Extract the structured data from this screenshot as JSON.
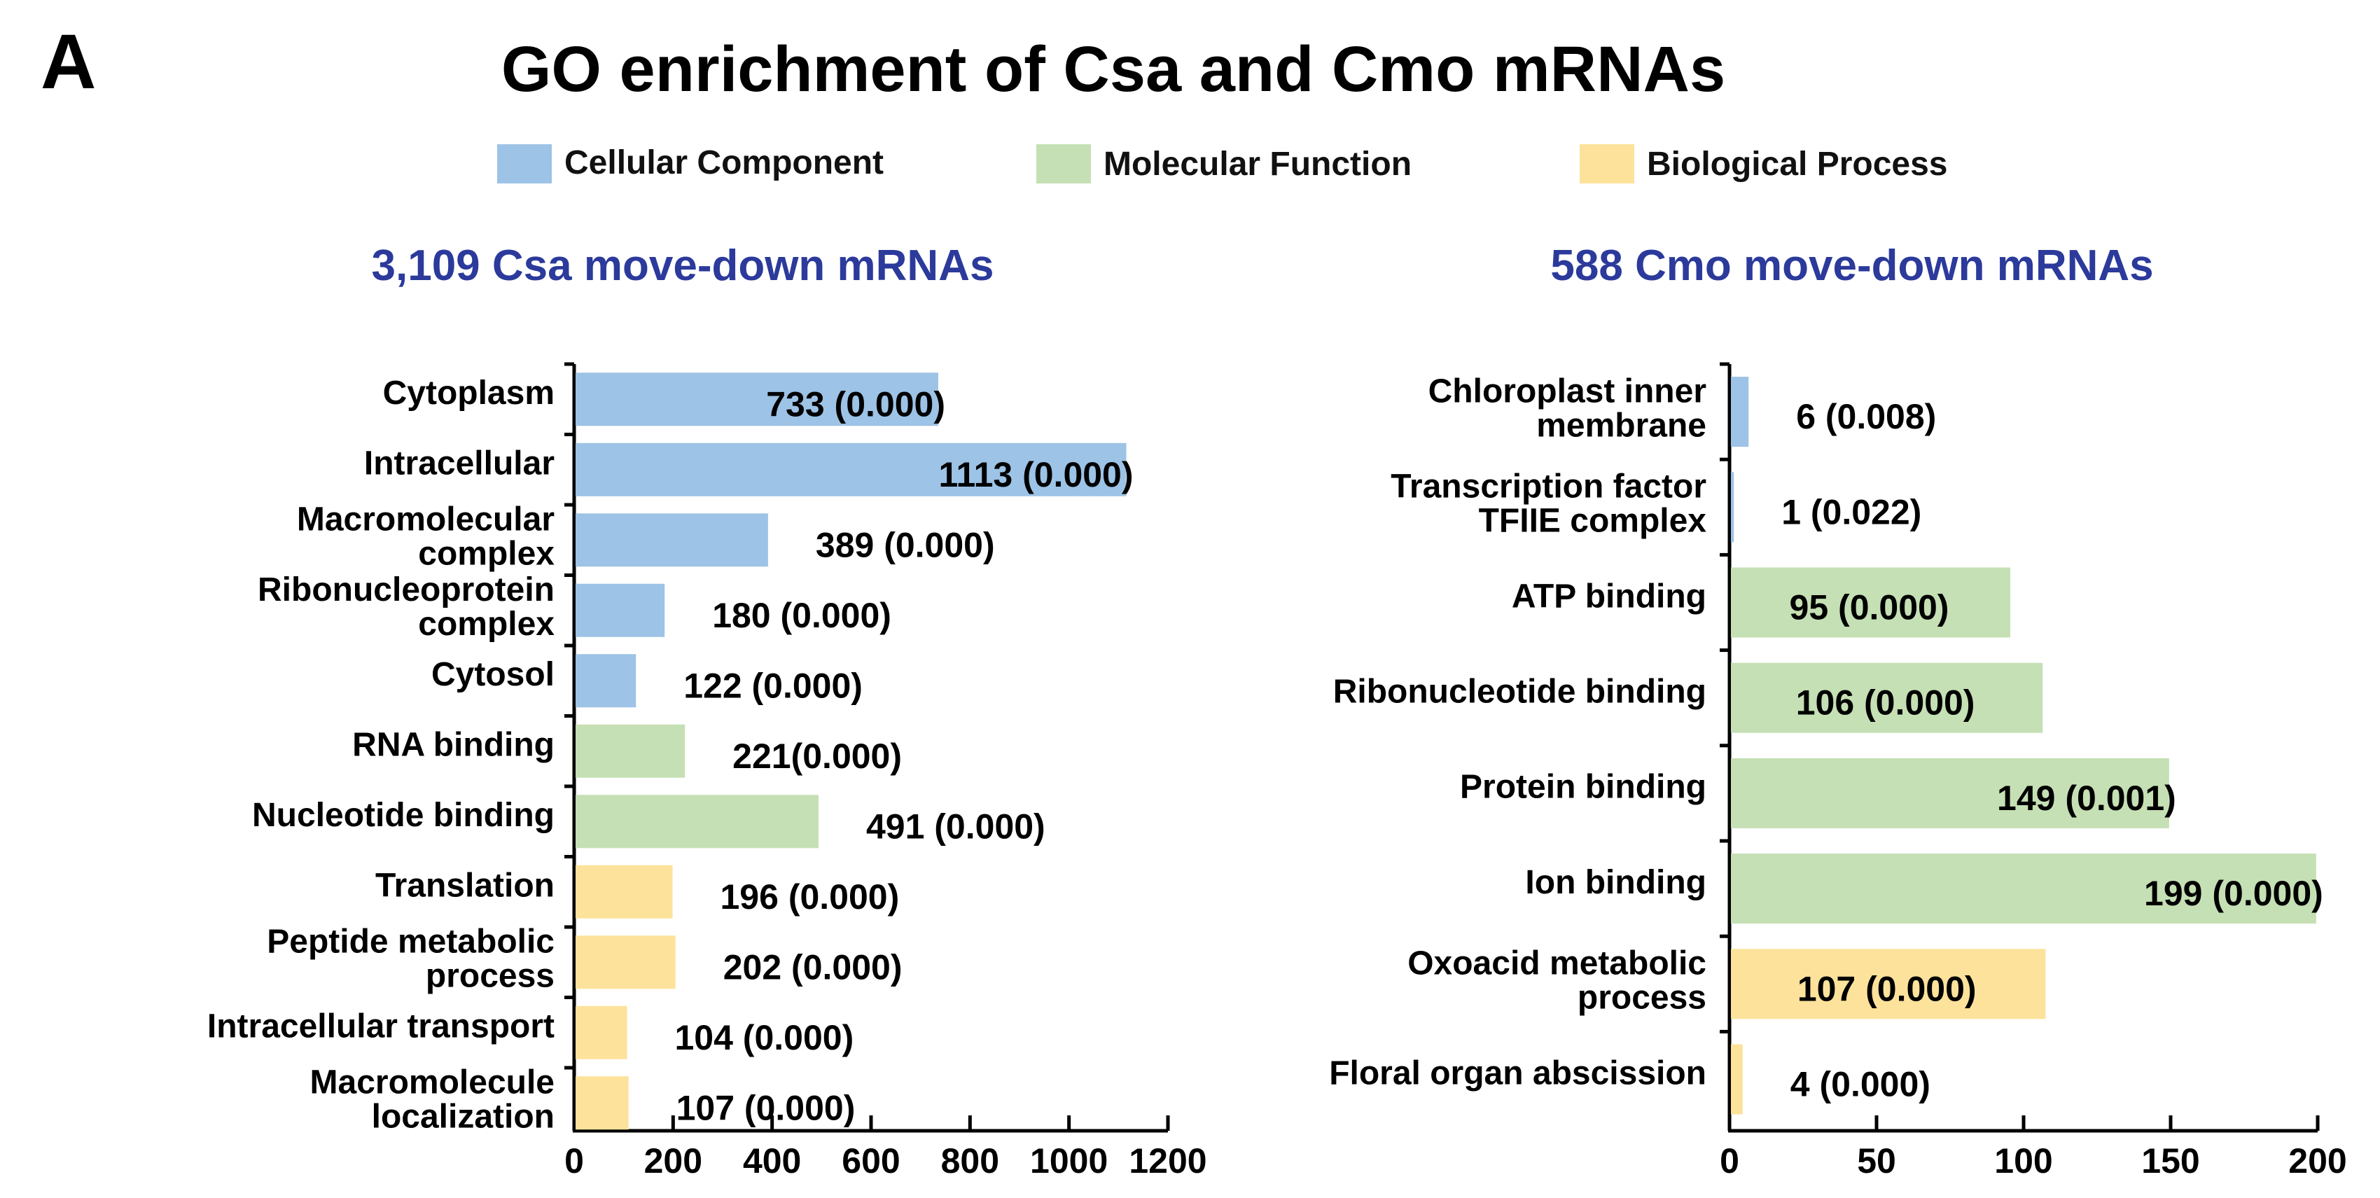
{
  "panel_label": "A",
  "title": "GO enrichment of  Csa and Cmo mRNAs",
  "legend": [
    {
      "label": "Cellular Component",
      "color": "#9dc3e6"
    },
    {
      "label": "Molecular Function",
      "color": "#c5e0b4"
    },
    {
      "label": "Biological Process",
      "color": "#fde29b"
    }
  ],
  "chart_data": [
    {
      "type": "bar",
      "orientation": "horizontal",
      "title": "3,109 Csa move-down mRNAs",
      "title_color": "#2b3a9b",
      "xlim": [
        0,
        1200
      ],
      "xticks": [
        0,
        200,
        400,
        600,
        800,
        1000,
        1200
      ],
      "categories": [
        [
          "Cytoplasm"
        ],
        [
          "Intracellular"
        ],
        [
          "Macromolecular",
          "complex"
        ],
        [
          "Ribonucleoprotein",
          "complex"
        ],
        [
          "Cytosol"
        ],
        [
          "RNA binding"
        ],
        [
          "Nucleotide binding"
        ],
        [
          "Translation"
        ],
        [
          "Peptide metabolic",
          "process"
        ],
        [
          "Intracellular transport"
        ],
        [
          "Macromolecule",
          "localization"
        ]
      ],
      "values": [
        733,
        1113,
        389,
        180,
        122,
        221,
        491,
        196,
        202,
        104,
        107
      ],
      "data_labels": [
        "733 (0.000)",
        "1113 (0.000)",
        "389 (0.000)",
        "180 (0.000)",
        "122 (0.000)",
        "221(0.000)",
        "491 (0.000)",
        "196 (0.000)",
        "202 (0.000)",
        "104 (0.000)",
        "107 (0.000)"
      ],
      "groups": [
        "Cellular Component",
        "Cellular Component",
        "Cellular Component",
        "Cellular Component",
        "Cellular Component",
        "Molecular Function",
        "Molecular Function",
        "Biological Process",
        "Biological Process",
        "Biological Process",
        "Biological Process"
      ]
    },
    {
      "type": "bar",
      "orientation": "horizontal",
      "title": "588 Cmo move-down mRNAs",
      "title_color": "#2b3a9b",
      "xlim": [
        0,
        200
      ],
      "xticks": [
        0,
        50,
        100,
        150,
        200
      ],
      "categories": [
        [
          "Chloroplast inner",
          "membrane"
        ],
        [
          "Transcription factor",
          "TFIIE complex"
        ],
        [
          "ATP binding"
        ],
        [
          "Ribonucleotide binding"
        ],
        [
          "Protein binding"
        ],
        [
          "Ion binding"
        ],
        [
          "Oxoacid metabolic",
          "process"
        ],
        [
          "Floral organ abscission"
        ]
      ],
      "values": [
        6,
        1,
        95,
        106,
        149,
        199,
        107,
        4
      ],
      "data_labels": [
        "6 (0.008)",
        "1 (0.022)",
        "95 (0.000)",
        "106 (0.000)",
        "149 (0.001)",
        "199 (0.000)",
        "107 (0.000)",
        "4 (0.000)"
      ],
      "groups": [
        "Cellular Component",
        "Cellular Component",
        "Molecular Function",
        "Molecular Function",
        "Molecular Function",
        "Molecular Function",
        "Biological Process",
        "Biological Process"
      ]
    }
  ]
}
